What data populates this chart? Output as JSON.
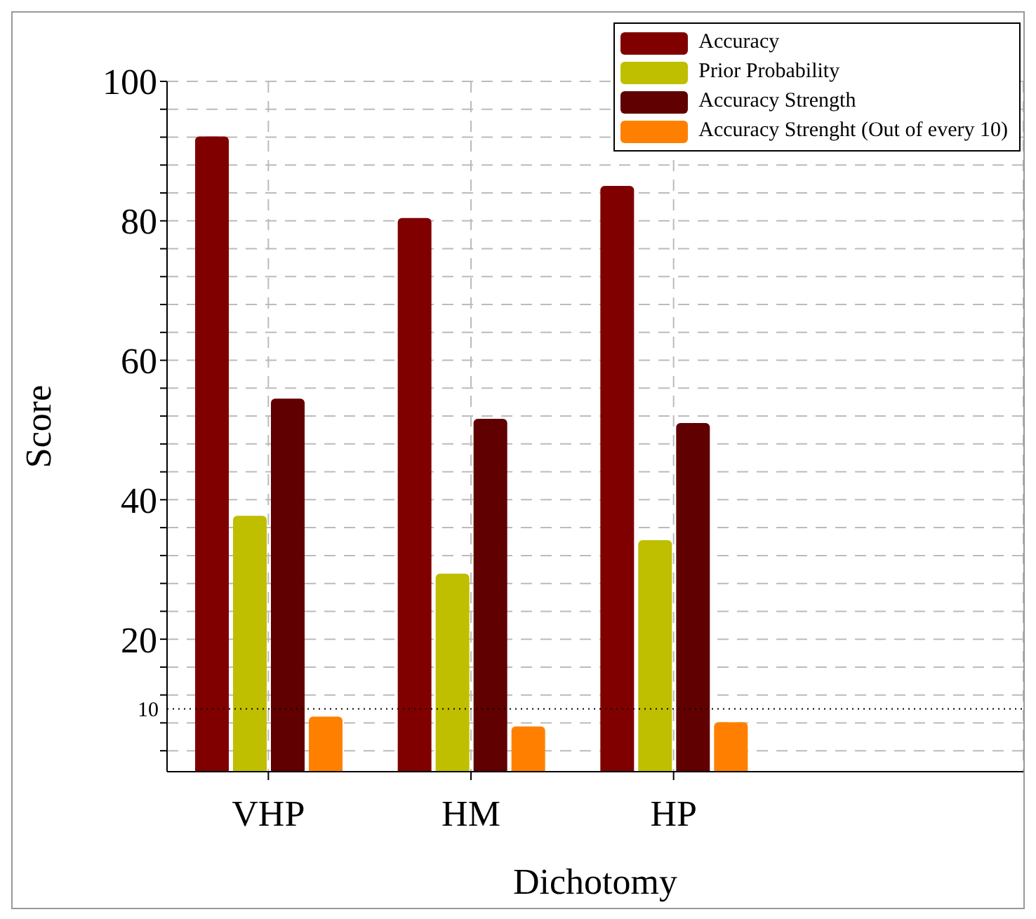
{
  "chart_data": {
    "type": "bar",
    "xlabel": "Dichotomy",
    "ylabel": "Score",
    "categories": [
      "VHP",
      "HM",
      "HP"
    ],
    "series": [
      {
        "name": "Accuracy",
        "color": "#800000",
        "values": [
          92.1,
          80.4,
          85.0
        ]
      },
      {
        "name": "Prior Probability",
        "color": "#bfbf00",
        "values": [
          37.7,
          29.4,
          34.2
        ]
      },
      {
        "name": "Accuracy Strength",
        "color": "#600000",
        "values": [
          54.5,
          51.6,
          51.0
        ]
      },
      {
        "name": "Accuracy Strenght (Out of every 10)",
        "color": "#ff8000",
        "values": [
          8.9,
          7.5,
          8.1
        ]
      }
    ],
    "ylim": [
      1,
      100
    ],
    "yticks": [
      {
        "value": 4,
        "label": null
      },
      {
        "value": 8,
        "label": null
      },
      {
        "value": 12,
        "label": null
      },
      {
        "value": 16,
        "label": null
      },
      20,
      {
        "value": 24,
        "label": null
      },
      {
        "value": 28,
        "label": null
      },
      {
        "value": 32,
        "label": null
      },
      {
        "value": 36,
        "label": null
      },
      40,
      {
        "value": 44,
        "label": null
      },
      {
        "value": 48,
        "label": null
      },
      {
        "value": 52,
        "label": null
      },
      {
        "value": 56,
        "label": null
      },
      60,
      {
        "value": 64,
        "label": null
      },
      {
        "value": 68,
        "label": null
      },
      {
        "value": 72,
        "label": null
      },
      {
        "value": 76,
        "label": null
      },
      80,
      {
        "value": 84,
        "label": null
      },
      {
        "value": 88,
        "label": null
      },
      {
        "value": 92,
        "label": null
      },
      {
        "value": 96,
        "label": null
      },
      100
    ],
    "ref_lines": [
      {
        "axis": "y",
        "value": 10,
        "label": "10",
        "color": "#000000",
        "line_style": "dotted"
      }
    ],
    "grid": true,
    "legend": "top right"
  }
}
